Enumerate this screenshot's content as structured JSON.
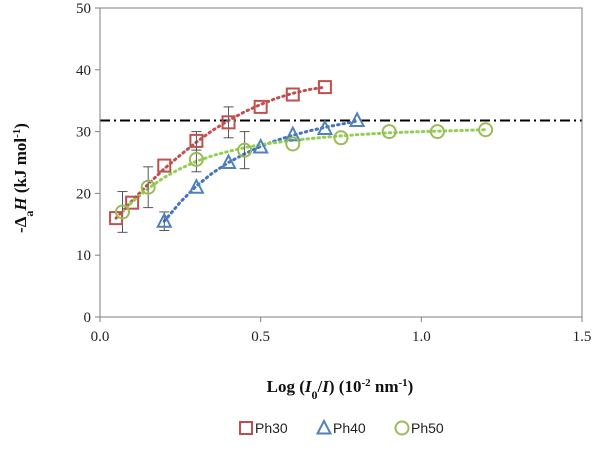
{
  "chart_data": {
    "type": "scatter",
    "xlabel": {
      "prefix": "Log (",
      "i0": "I",
      "i0_sub": "0",
      "slash": "/",
      "i": "I",
      "mid": ") (10",
      "exp1": "-2",
      "unit": " nm",
      "exp2": "-1",
      "close": ")"
    },
    "ylabel": {
      "prefix": "-Δ",
      "sub": "a",
      "h": "H",
      "unit": " (kJ mol",
      "exp": "-1",
      "close": ")"
    },
    "xlim": [
      0,
      1.5
    ],
    "ylim": [
      0,
      50
    ],
    "xticks": [
      "0.0",
      "0.5",
      "1.0",
      "1.5"
    ],
    "xtick_values": [
      0,
      0.5,
      1.0,
      1.5
    ],
    "yticks": [
      "0",
      "10",
      "20",
      "30",
      "40",
      "50"
    ],
    "ytick_values": [
      0,
      10,
      20,
      30,
      40,
      50
    ],
    "grid": false,
    "legend_position": "bottom",
    "reference_line": {
      "y": 31.8,
      "style": "dash-dot",
      "color": "#000000"
    },
    "series": [
      {
        "name": "Ph30",
        "marker": "square",
        "color": "#c0504d",
        "trend_color": "#c0504d",
        "x": [
          0.05,
          0.1,
          0.2,
          0.3,
          0.4,
          0.5,
          0.6,
          0.7
        ],
        "y": [
          16.0,
          18.5,
          24.5,
          28.5,
          31.5,
          34.0,
          36.0,
          37.2
        ],
        "error": [
          null,
          null,
          null,
          1.5,
          2.5,
          null,
          null,
          null
        ],
        "trend": [
          [
            0.05,
            16.0
          ],
          [
            0.1,
            18.8
          ],
          [
            0.15,
            21.5
          ],
          [
            0.2,
            24.0
          ],
          [
            0.25,
            26.2
          ],
          [
            0.3,
            28.3
          ],
          [
            0.35,
            30.2
          ],
          [
            0.4,
            31.8
          ],
          [
            0.45,
            33.2
          ],
          [
            0.5,
            34.4
          ],
          [
            0.55,
            35.4
          ],
          [
            0.6,
            36.2
          ],
          [
            0.65,
            36.8
          ],
          [
            0.7,
            37.2
          ]
        ]
      },
      {
        "name": "Ph40",
        "marker": "triangle",
        "color": "#4f81bd",
        "trend_color": "#4472c4",
        "x": [
          0.2,
          0.3,
          0.4,
          0.5,
          0.6,
          0.7,
          0.8
        ],
        "y": [
          15.5,
          21.0,
          25.0,
          27.5,
          29.5,
          30.5,
          31.8
        ],
        "error": [
          1.5,
          null,
          null,
          null,
          null,
          null,
          null
        ],
        "trend": [
          [
            0.2,
            15.5
          ],
          [
            0.25,
            18.6
          ],
          [
            0.3,
            21.2
          ],
          [
            0.35,
            23.3
          ],
          [
            0.4,
            25.0
          ],
          [
            0.45,
            26.4
          ],
          [
            0.5,
            27.6
          ],
          [
            0.55,
            28.6
          ],
          [
            0.6,
            29.4
          ],
          [
            0.65,
            30.1
          ],
          [
            0.7,
            30.7
          ],
          [
            0.75,
            31.2
          ],
          [
            0.8,
            31.7
          ]
        ]
      },
      {
        "name": "Ph50",
        "marker": "circle",
        "color": "#9bbb59",
        "trend_color": "#92d050",
        "x": [
          0.07,
          0.15,
          0.3,
          0.45,
          0.6,
          0.75,
          0.9,
          1.05,
          1.2
        ],
        "y": [
          17.0,
          21.0,
          25.5,
          27.0,
          28.0,
          29.0,
          30.0,
          30.0,
          30.3
        ],
        "error": [
          3.3,
          3.3,
          2.0,
          3.0,
          null,
          null,
          null,
          null,
          null
        ],
        "trend": [
          [
            0.07,
            17.0
          ],
          [
            0.1,
            18.6
          ],
          [
            0.15,
            20.8
          ],
          [
            0.2,
            22.6
          ],
          [
            0.25,
            24.0
          ],
          [
            0.3,
            25.2
          ],
          [
            0.35,
            26.1
          ],
          [
            0.4,
            26.8
          ],
          [
            0.45,
            27.4
          ],
          [
            0.5,
            27.9
          ],
          [
            0.6,
            28.6
          ],
          [
            0.7,
            29.1
          ],
          [
            0.8,
            29.5
          ],
          [
            0.9,
            29.8
          ],
          [
            1.0,
            30.0
          ],
          [
            1.1,
            30.15
          ],
          [
            1.2,
            30.3
          ]
        ]
      }
    ]
  }
}
